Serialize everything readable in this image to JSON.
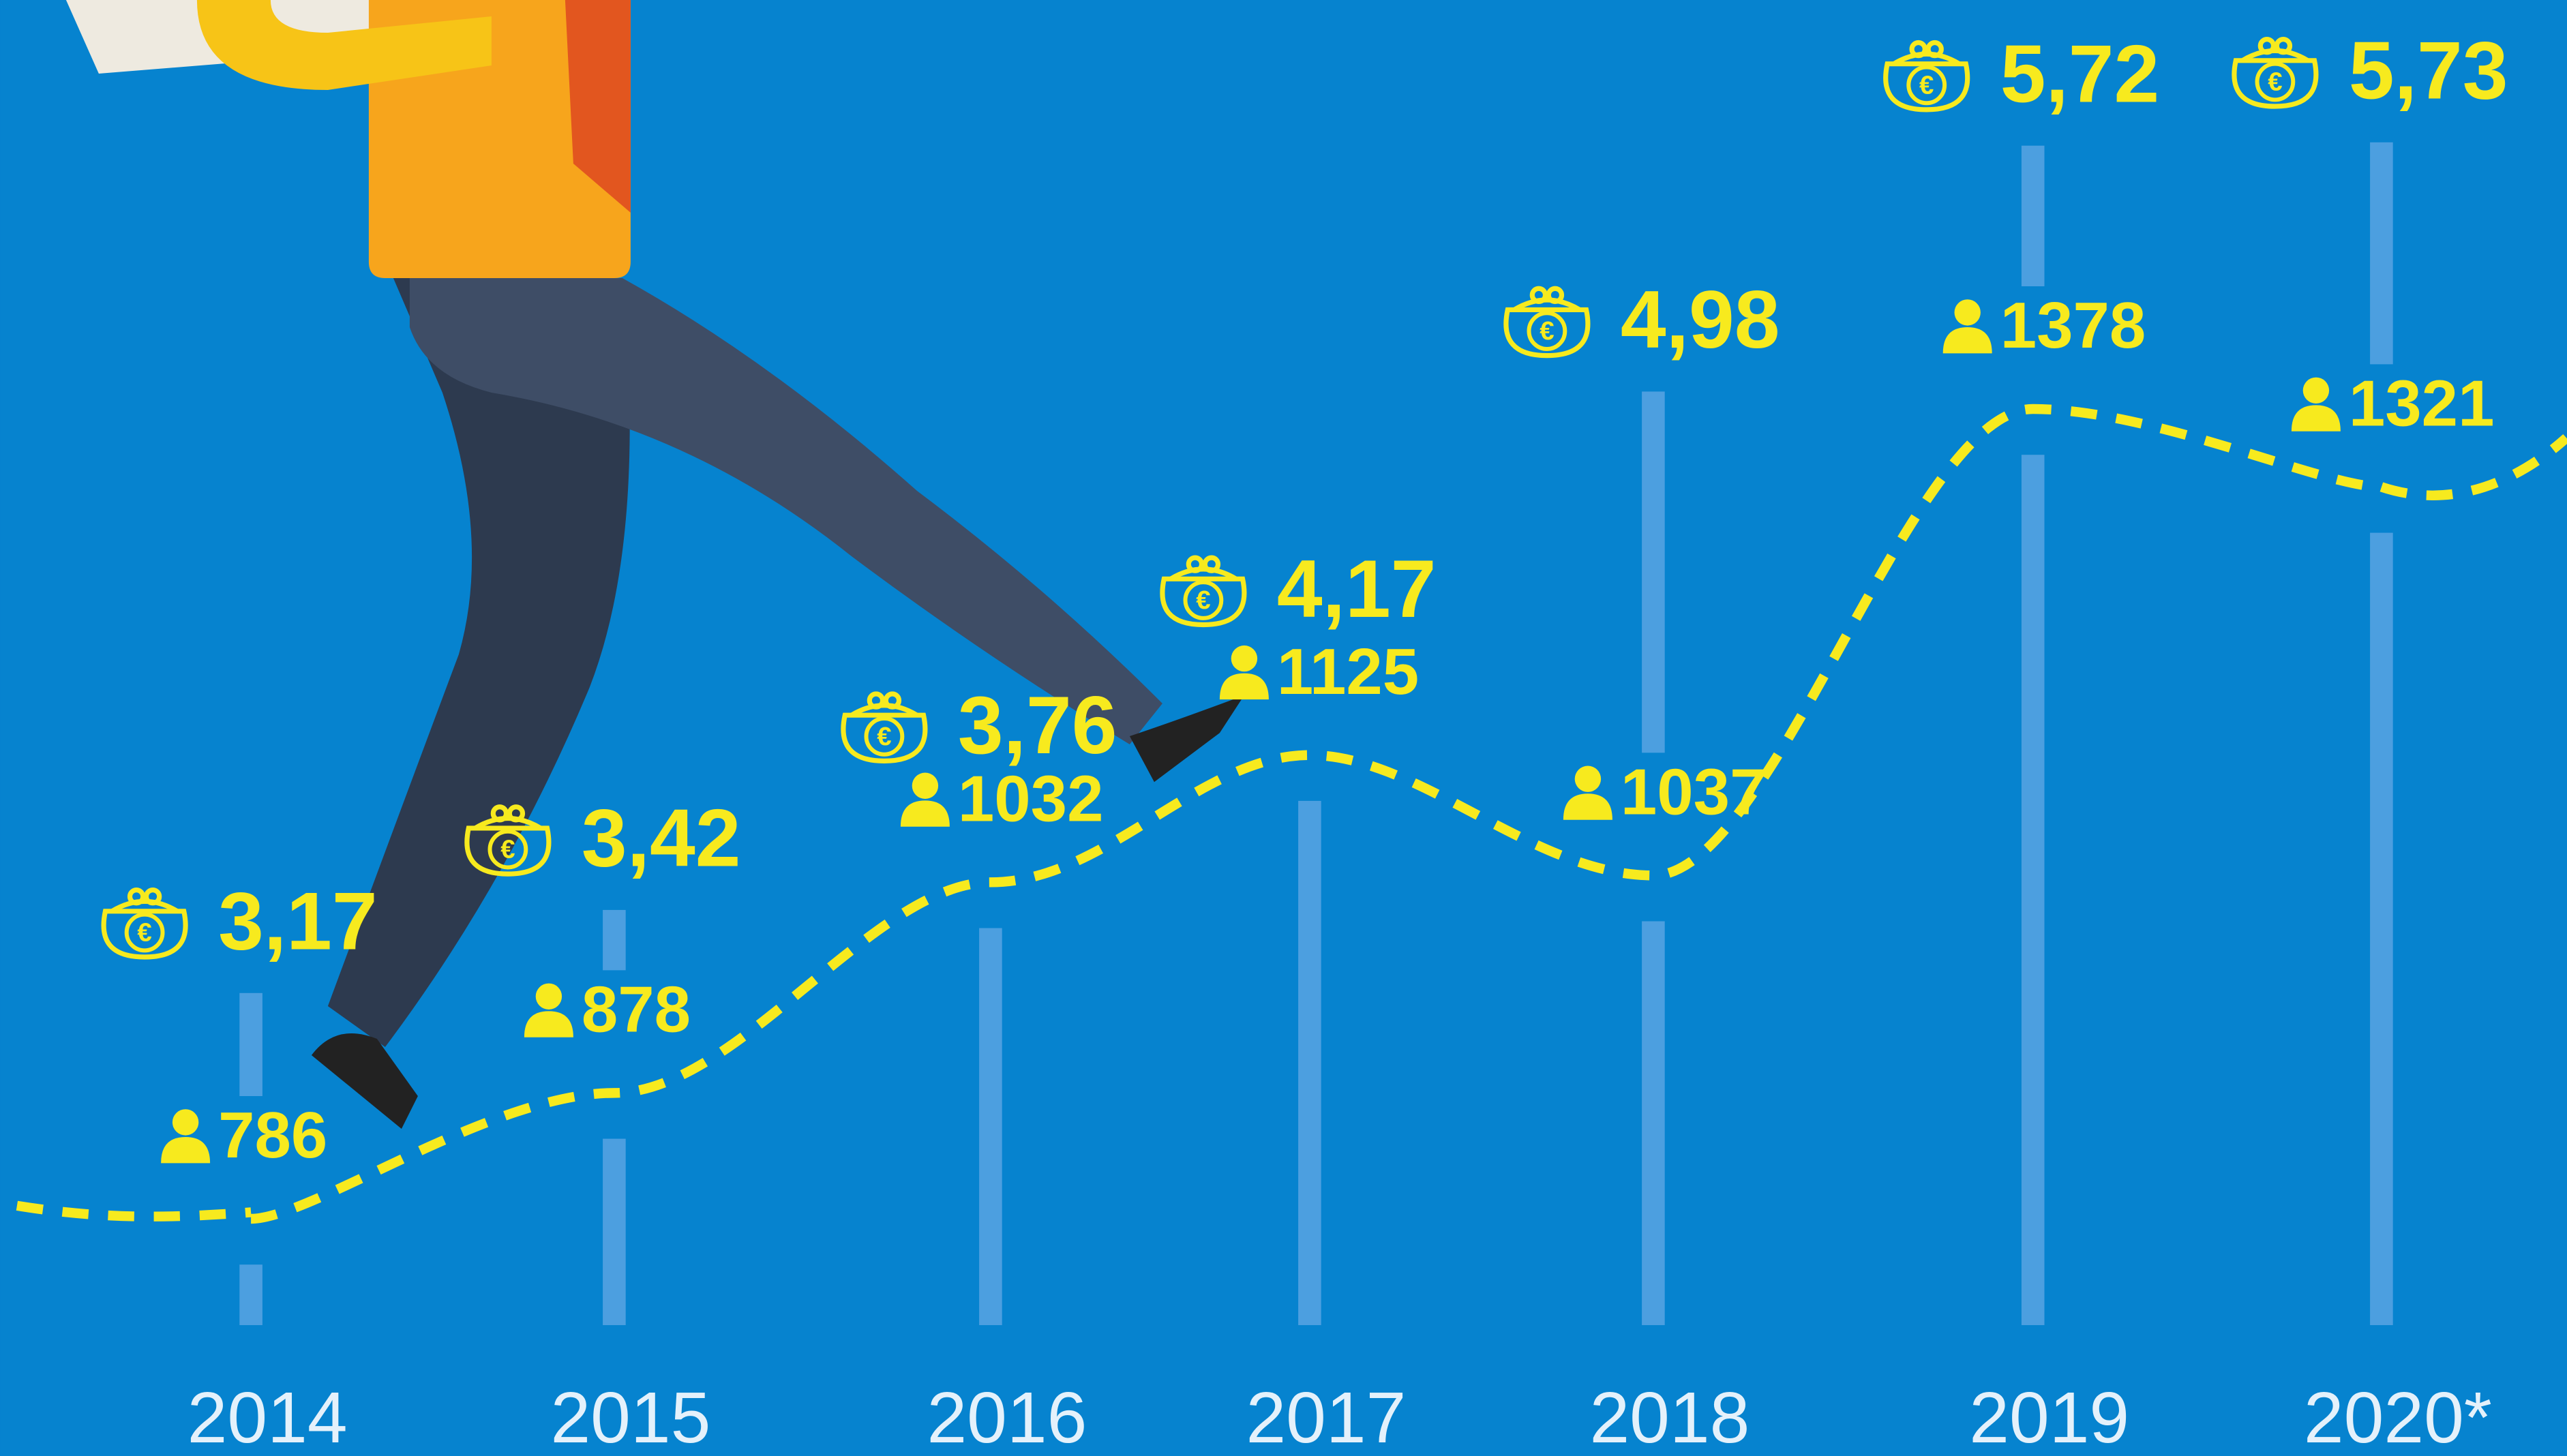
{
  "chart_data": {
    "type": "line",
    "categories": [
      "2014",
      "2015",
      "2016",
      "2017",
      "2018",
      "2019",
      "2020*"
    ],
    "series": [
      {
        "color": "#f7ea1e",
        "values": [
          786,
          878,
          1032,
          1125,
          1037,
          1378,
          1321
        ]
      },
      {
        "color": "#f7ea1e",
        "values": [
          3.17,
          3.42,
          3.76,
          4.17,
          4.98,
          5.72,
          5.73
        ],
        "value_labels": [
          "3,17",
          "3,42",
          "3,76",
          "4,17",
          "4,98",
          "5,72",
          "5,73"
        ]
      }
    ]
  }
}
